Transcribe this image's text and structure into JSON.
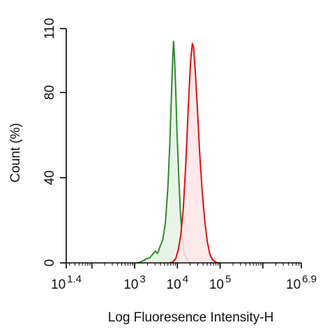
{
  "chart_data": {
    "type": "area",
    "xlabel": "Log Fluoresence Intensity-H",
    "ylabel": "Count  (%)",
    "x_scale": "log10",
    "xlim_log10": [
      1.4,
      6.9
    ],
    "ylim": [
      0,
      110
    ],
    "grid": false,
    "y_ticks": [
      {
        "value": 0,
        "label": "0"
      },
      {
        "value": 40,
        "label": "40"
      },
      {
        "value": 80,
        "label": "80"
      },
      {
        "value": 110,
        "label": "110"
      }
    ],
    "x_ticks": [
      {
        "exp": 1.4,
        "base": "10",
        "sup": "1.4"
      },
      {
        "exp": 3,
        "base": "10",
        "sup": "3"
      },
      {
        "exp": 4,
        "base": "10",
        "sup": "4"
      },
      {
        "exp": 5,
        "base": "10",
        "sup": "5"
      },
      {
        "exp": 6.9,
        "base": "10",
        "sup": "6.9"
      }
    ],
    "series": [
      {
        "line_color": "#2e8b2e",
        "fill_color": "#e5f2e5",
        "points_log10": [
          [
            3.05,
            0
          ],
          [
            3.12,
            0.3
          ],
          [
            3.2,
            1
          ],
          [
            3.28,
            2
          ],
          [
            3.36,
            2.5
          ],
          [
            3.42,
            4
          ],
          [
            3.48,
            5.5
          ],
          [
            3.54,
            4.5
          ],
          [
            3.6,
            8
          ],
          [
            3.66,
            11
          ],
          [
            3.72,
            19
          ],
          [
            3.78,
            36
          ],
          [
            3.82,
            55
          ],
          [
            3.86,
            78
          ],
          [
            3.89,
            96
          ],
          [
            3.91,
            104
          ],
          [
            3.93,
            98
          ],
          [
            3.96,
            82
          ],
          [
            3.99,
            62
          ],
          [
            4.03,
            42
          ],
          [
            4.07,
            24
          ],
          [
            4.11,
            13
          ],
          [
            4.15,
            6
          ],
          [
            4.2,
            2.5
          ],
          [
            4.26,
            0.8
          ],
          [
            4.32,
            0
          ]
        ]
      },
      {
        "line_color": "#e01010",
        "fill_color": "#fde4e6",
        "points_log10": [
          [
            3.82,
            0
          ],
          [
            3.9,
            0.5
          ],
          [
            3.96,
            2
          ],
          [
            4.02,
            6
          ],
          [
            4.08,
            13
          ],
          [
            4.14,
            26
          ],
          [
            4.2,
            48
          ],
          [
            4.26,
            75
          ],
          [
            4.31,
            95
          ],
          [
            4.35,
            103
          ],
          [
            4.38,
            101
          ],
          [
            4.42,
            90
          ],
          [
            4.47,
            72
          ],
          [
            4.52,
            52
          ],
          [
            4.58,
            34
          ],
          [
            4.64,
            20
          ],
          [
            4.7,
            10
          ],
          [
            4.76,
            4
          ],
          [
            4.82,
            1.5
          ],
          [
            4.9,
            0.3
          ],
          [
            4.98,
            0
          ]
        ]
      }
    ]
  }
}
